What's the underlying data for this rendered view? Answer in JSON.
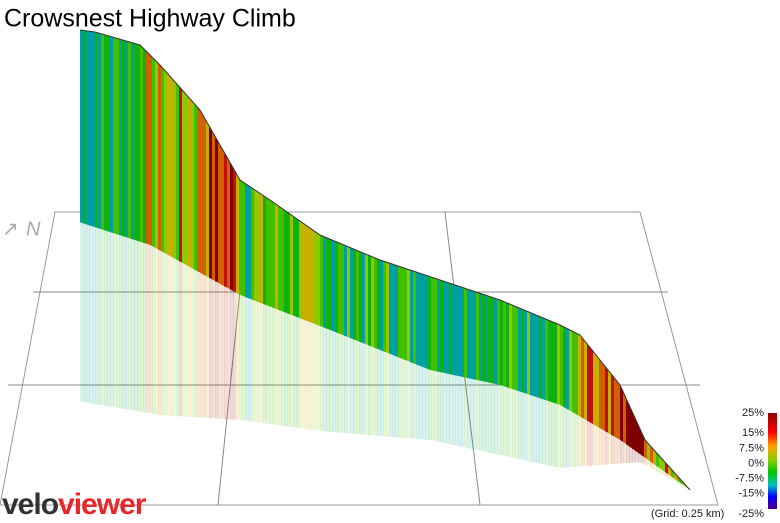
{
  "title": "Crowsnest Highway Climb",
  "north": "N",
  "legend": {
    "lim": [
      -25,
      25
    ],
    "ticks": [
      {
        "value": 25,
        "label": "25%"
      },
      {
        "value": 15,
        "label": "15%"
      },
      {
        "value": 7.5,
        "label": "7.5%"
      },
      {
        "value": 0,
        "label": "0%"
      },
      {
        "value": -7.5,
        "label": "-7.5%"
      },
      {
        "value": -15,
        "label": "-15%"
      },
      {
        "value": -25,
        "label": "-25%"
      }
    ]
  },
  "grid_note": "(Grid: 0.25 km)",
  "logo": {
    "part1": "velo",
    "part2": "viewer"
  }
}
